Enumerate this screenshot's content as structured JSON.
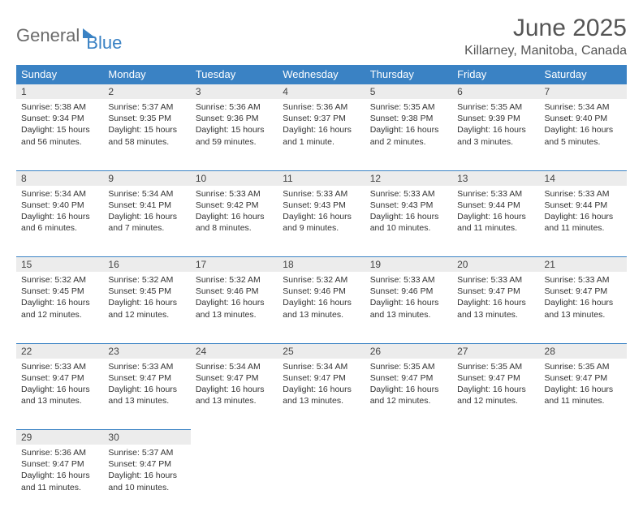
{
  "logo": {
    "part1": "General",
    "part2": "Blue"
  },
  "title": "June 2025",
  "location": "Killarney, Manitoba, Canada",
  "colors": {
    "header_bg": "#3a82c4",
    "header_text": "#ffffff",
    "daynum_bg": "#ececec",
    "border": "#3a82c4",
    "body_text": "#333333"
  },
  "day_headers": [
    "Sunday",
    "Monday",
    "Tuesday",
    "Wednesday",
    "Thursday",
    "Friday",
    "Saturday"
  ],
  "weeks": [
    [
      {
        "n": "1",
        "rise": "5:38 AM",
        "set": "9:34 PM",
        "day": "15 hours and 56 minutes."
      },
      {
        "n": "2",
        "rise": "5:37 AM",
        "set": "9:35 PM",
        "day": "15 hours and 58 minutes."
      },
      {
        "n": "3",
        "rise": "5:36 AM",
        "set": "9:36 PM",
        "day": "15 hours and 59 minutes."
      },
      {
        "n": "4",
        "rise": "5:36 AM",
        "set": "9:37 PM",
        "day": "16 hours and 1 minute."
      },
      {
        "n": "5",
        "rise": "5:35 AM",
        "set": "9:38 PM",
        "day": "16 hours and 2 minutes."
      },
      {
        "n": "6",
        "rise": "5:35 AM",
        "set": "9:39 PM",
        "day": "16 hours and 3 minutes."
      },
      {
        "n": "7",
        "rise": "5:34 AM",
        "set": "9:40 PM",
        "day": "16 hours and 5 minutes."
      }
    ],
    [
      {
        "n": "8",
        "rise": "5:34 AM",
        "set": "9:40 PM",
        "day": "16 hours and 6 minutes."
      },
      {
        "n": "9",
        "rise": "5:34 AM",
        "set": "9:41 PM",
        "day": "16 hours and 7 minutes."
      },
      {
        "n": "10",
        "rise": "5:33 AM",
        "set": "9:42 PM",
        "day": "16 hours and 8 minutes."
      },
      {
        "n": "11",
        "rise": "5:33 AM",
        "set": "9:43 PM",
        "day": "16 hours and 9 minutes."
      },
      {
        "n": "12",
        "rise": "5:33 AM",
        "set": "9:43 PM",
        "day": "16 hours and 10 minutes."
      },
      {
        "n": "13",
        "rise": "5:33 AM",
        "set": "9:44 PM",
        "day": "16 hours and 11 minutes."
      },
      {
        "n": "14",
        "rise": "5:33 AM",
        "set": "9:44 PM",
        "day": "16 hours and 11 minutes."
      }
    ],
    [
      {
        "n": "15",
        "rise": "5:32 AM",
        "set": "9:45 PM",
        "day": "16 hours and 12 minutes."
      },
      {
        "n": "16",
        "rise": "5:32 AM",
        "set": "9:45 PM",
        "day": "16 hours and 12 minutes."
      },
      {
        "n": "17",
        "rise": "5:32 AM",
        "set": "9:46 PM",
        "day": "16 hours and 13 minutes."
      },
      {
        "n": "18",
        "rise": "5:32 AM",
        "set": "9:46 PM",
        "day": "16 hours and 13 minutes."
      },
      {
        "n": "19",
        "rise": "5:33 AM",
        "set": "9:46 PM",
        "day": "16 hours and 13 minutes."
      },
      {
        "n": "20",
        "rise": "5:33 AM",
        "set": "9:47 PM",
        "day": "16 hours and 13 minutes."
      },
      {
        "n": "21",
        "rise": "5:33 AM",
        "set": "9:47 PM",
        "day": "16 hours and 13 minutes."
      }
    ],
    [
      {
        "n": "22",
        "rise": "5:33 AM",
        "set": "9:47 PM",
        "day": "16 hours and 13 minutes."
      },
      {
        "n": "23",
        "rise": "5:33 AM",
        "set": "9:47 PM",
        "day": "16 hours and 13 minutes."
      },
      {
        "n": "24",
        "rise": "5:34 AM",
        "set": "9:47 PM",
        "day": "16 hours and 13 minutes."
      },
      {
        "n": "25",
        "rise": "5:34 AM",
        "set": "9:47 PM",
        "day": "16 hours and 13 minutes."
      },
      {
        "n": "26",
        "rise": "5:35 AM",
        "set": "9:47 PM",
        "day": "16 hours and 12 minutes."
      },
      {
        "n": "27",
        "rise": "5:35 AM",
        "set": "9:47 PM",
        "day": "16 hours and 12 minutes."
      },
      {
        "n": "28",
        "rise": "5:35 AM",
        "set": "9:47 PM",
        "day": "16 hours and 11 minutes."
      }
    ],
    [
      {
        "n": "29",
        "rise": "5:36 AM",
        "set": "9:47 PM",
        "day": "16 hours and 11 minutes."
      },
      {
        "n": "30",
        "rise": "5:37 AM",
        "set": "9:47 PM",
        "day": "16 hours and 10 minutes."
      },
      null,
      null,
      null,
      null,
      null
    ]
  ],
  "labels": {
    "sunrise": "Sunrise:",
    "sunset": "Sunset:",
    "daylight": "Daylight:"
  }
}
